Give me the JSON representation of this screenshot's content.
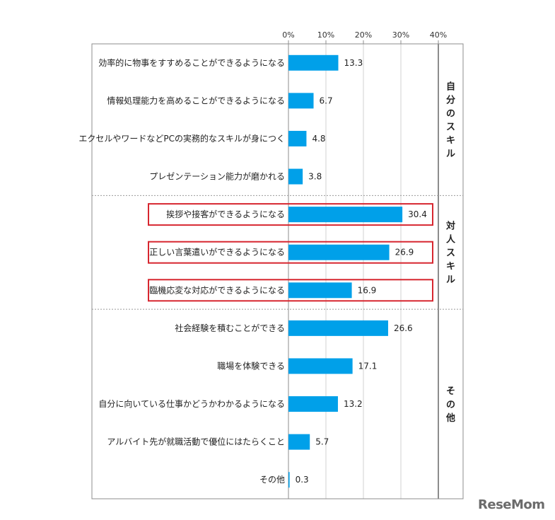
{
  "chart_data": {
    "type": "bar",
    "orientation": "horizontal",
    "xlim": [
      0,
      40
    ],
    "ticks": [
      "0%",
      "10%",
      "20%",
      "30%",
      "40%"
    ],
    "tick_values": [
      0,
      10,
      20,
      30,
      40
    ],
    "grid": true,
    "bar_color": "#00A0E9",
    "highlight_color": "#D7262F",
    "categories": [
      "効率的に物事をすすめることができるようになる",
      "情報処理能力を高めることができるようになる",
      "エクセルやワードなどPCの実務的なスキルが身につく",
      "プレゼンテーション能力が磨かれる",
      "挨拶や接客ができるようになる",
      "正しい言葉遣いができるようになる",
      "臨機応変な対応ができるようになる",
      "社会経験を積むことができる",
      "職場を体験できる",
      "自分に向いている仕事かどうかわかるようになる",
      "アルバイト先が就職活動で優位にはたらくこと",
      "その他"
    ],
    "values": [
      13.3,
      6.7,
      4.8,
      3.8,
      30.4,
      26.9,
      16.9,
      26.6,
      17.1,
      13.2,
      5.7,
      0.3
    ],
    "value_labels": [
      "13.3",
      "6.7",
      "4.8",
      "3.8",
      "30.4",
      "26.9",
      "16.9",
      "26.6",
      "17.1",
      "13.2",
      "5.7",
      "0.3"
    ],
    "highlighted": [
      false,
      false,
      false,
      false,
      true,
      true,
      true,
      false,
      false,
      false,
      false,
      false
    ],
    "groups": [
      {
        "label": "自分のスキル",
        "start": 0,
        "end": 3
      },
      {
        "label": "対人スキル",
        "start": 4,
        "end": 6
      },
      {
        "label": "その他",
        "start": 7,
        "end": 11
      }
    ]
  },
  "watermark": "ReseMom"
}
